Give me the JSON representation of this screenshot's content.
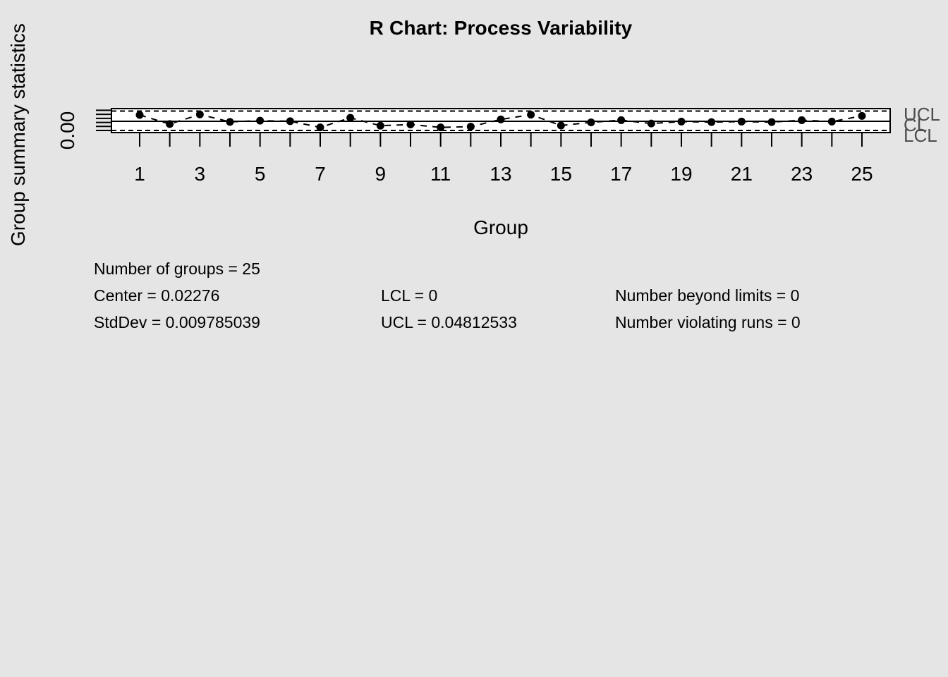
{
  "title": "R Chart: Process Variability",
  "axes": {
    "x_label": "Group",
    "y_label": "Group summary statistics",
    "y_tick_label": "0.00"
  },
  "limit_labels": {
    "ucl": "UCL",
    "cl": "CL",
    "lcl": "LCL"
  },
  "stats": {
    "number_of_groups": "Number of groups = 25",
    "center": "Center = 0.02276",
    "stddev": "StdDev = 0.009785039",
    "lcl": "LCL = 0",
    "ucl": "UCL = 0.04812533",
    "beyond_limits": "Number beyond limits = 0",
    "violating_runs": "Number violating runs = 0"
  },
  "colors": {
    "background": "#e5e5e5",
    "plot_fill": "#ffffff",
    "line": "#000000",
    "point": "#000000",
    "limit_label_text": "#4d4d4d"
  },
  "chart_data": {
    "type": "line",
    "title": "R Chart: Process Variability",
    "xlabel": "Group",
    "ylabel": "Group summary statistics",
    "x": [
      1,
      2,
      3,
      4,
      5,
      6,
      7,
      8,
      9,
      10,
      11,
      12,
      13,
      14,
      15,
      16,
      17,
      18,
      19,
      20,
      21,
      22,
      23,
      24,
      25
    ],
    "values": [
      0.0385,
      0.0159,
      0.0398,
      0.0213,
      0.0243,
      0.023,
      0.0077,
      0.0314,
      0.0118,
      0.0148,
      0.0077,
      0.0095,
      0.0273,
      0.0391,
      0.0123,
      0.0202,
      0.0255,
      0.0172,
      0.022,
      0.0207,
      0.022,
      0.0207,
      0.0255,
      0.022,
      0.0362
    ],
    "center": 0.02276,
    "std_dev": 0.009785039,
    "lcl": 0,
    "ucl": 0.04812533,
    "number_of_groups": 25,
    "number_beyond_limits": 0,
    "number_violating_runs": 0,
    "x_tick_labels": [
      "1",
      "3",
      "5",
      "7",
      "9",
      "11",
      "13",
      "15",
      "17",
      "19",
      "21",
      "23",
      "25"
    ],
    "y_axis_ticks": [
      0,
      0.01,
      0.02,
      0.03,
      0.04,
      0.05
    ],
    "y_tick_labels_shown": [
      "0.00"
    ],
    "ylim": [
      -0.003,
      0.051
    ],
    "grid": false,
    "legend_position": "none",
    "point_style": "filled-circle",
    "connector_style": "dashed",
    "limit_line_style": "dashed",
    "center_line_style": "solid"
  }
}
